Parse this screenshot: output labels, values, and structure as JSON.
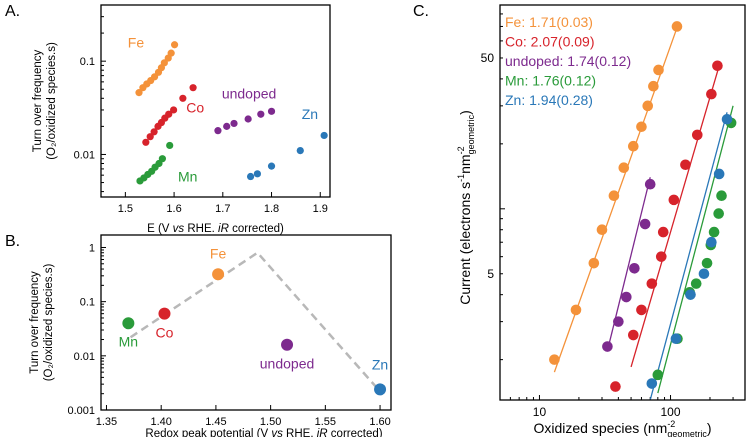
{
  "colors": {
    "Fe": "#f4923a",
    "Co": "#d7232b",
    "undoped": "#7d2a8e",
    "Mn": "#2a9b3a",
    "Zn": "#2a78b8",
    "axis": "#000000",
    "dashed": "#b8b8b8"
  },
  "chart_data": [
    {
      "panel_label": "A.",
      "type": "scatter",
      "xlabel_parts": [
        "E (V ",
        "vs",
        " RHE. ",
        "iR",
        " corrected)"
      ],
      "ylabel_line1": "Turn over frequency",
      "ylabel_line2": "(O₂/oxidized species.s)",
      "xscale": "linear",
      "yscale": "log",
      "xlim": [
        1.45,
        1.92
      ],
      "ylim": [
        0.0035,
        0.4
      ],
      "xticks": [
        1.5,
        1.6,
        1.7,
        1.8,
        1.9
      ],
      "xtick_labels": [
        "1.5",
        "1.6",
        "1.7",
        "1.8",
        "1.9"
      ],
      "yticks": [
        0.01,
        0.1
      ],
      "ytick_labels": [
        "0.01",
        "0.1"
      ],
      "series": [
        {
          "name": "Fe",
          "label": "Fe",
          "label_at": [
            1.505,
            0.14
          ],
          "x": [
            1.528,
            1.536,
            1.544,
            1.552,
            1.56,
            1.568,
            1.574,
            1.58,
            1.588,
            1.594,
            1.601
          ],
          "y": [
            0.046,
            0.052,
            0.057,
            0.062,
            0.068,
            0.076,
            0.085,
            0.096,
            0.108,
            0.122,
            0.15
          ]
        },
        {
          "name": "Co",
          "label": "Co",
          "label_at": [
            1.625,
            0.028
          ],
          "x": [
            1.542,
            1.551,
            1.559,
            1.567,
            1.574,
            1.581,
            1.589,
            1.599,
            1.618,
            1.639
          ],
          "y": [
            0.0135,
            0.0155,
            0.0175,
            0.02,
            0.022,
            0.0245,
            0.027,
            0.03,
            0.04,
            0.052
          ]
        },
        {
          "name": "undoped",
          "label": "undoped",
          "label_at": [
            1.698,
            0.04
          ],
          "x": [
            1.69,
            1.708,
            1.723,
            1.752,
            1.778,
            1.8
          ],
          "y": [
            0.018,
            0.02,
            0.0215,
            0.024,
            0.027,
            0.029
          ]
        },
        {
          "name": "Mn",
          "label": "Mn",
          "label_at": [
            1.608,
            0.0051
          ],
          "x": [
            1.53,
            1.538,
            1.546,
            1.554,
            1.561,
            1.569,
            1.576,
            1.591
          ],
          "y": [
            0.0052,
            0.0056,
            0.0061,
            0.0066,
            0.0073,
            0.008,
            0.009,
            0.0125
          ]
        },
        {
          "name": "Zn",
          "label": "Zn",
          "label_at": [
            1.862,
            0.024
          ],
          "x": [
            1.757,
            1.771,
            1.8,
            1.859,
            1.908
          ],
          "y": [
            0.0058,
            0.0062,
            0.0075,
            0.011,
            0.016
          ]
        }
      ]
    },
    {
      "panel_label": "B.",
      "type": "scatter",
      "xlabel_parts": [
        "Redox peak potential (V ",
        "vs",
        " RHE. ",
        "iR",
        " corrected)"
      ],
      "ylabel_line1": "Turn over frequency",
      "ylabel_line2": "(O₂/oxidized species.s)",
      "xscale": "linear",
      "yscale": "log",
      "xlim": [
        1.345,
        1.61
      ],
      "ylim": [
        0.001,
        1.7
      ],
      "xticks": [
        1.35,
        1.4,
        1.45,
        1.5,
        1.55,
        1.6
      ],
      "xtick_labels": [
        "1.35",
        "1.40",
        "1.45",
        "1.50",
        "1.55",
        "1.60"
      ],
      "yticks": [
        0.001,
        0.01,
        0.1,
        1
      ],
      "ytick_labels": [
        "0.001",
        "0.01",
        "0.1",
        "1"
      ],
      "dashed_line": {
        "x": [
          1.372,
          1.488,
          1.6
        ],
        "y": [
          0.022,
          0.8,
          0.0022
        ]
      },
      "series": [
        {
          "name": "Mn",
          "label": "Mn",
          "x": [
            1.37
          ],
          "y": [
            0.04
          ],
          "label_at": [
            1.37,
            0.015
          ]
        },
        {
          "name": "Co",
          "label": "Co",
          "x": [
            1.403
          ],
          "y": [
            0.06
          ],
          "label_at": [
            1.403,
            0.022
          ]
        },
        {
          "name": "Fe",
          "label": "Fe",
          "x": [
            1.452
          ],
          "y": [
            0.32
          ],
          "label_at": [
            1.452,
            0.62
          ]
        },
        {
          "name": "undoped",
          "label": "undoped",
          "x": [
            1.515
          ],
          "y": [
            0.016
          ],
          "label_at": [
            1.515,
            0.0058
          ]
        },
        {
          "name": "Zn",
          "label": "Zn",
          "x": [
            1.6
          ],
          "y": [
            0.0024
          ],
          "label_at": [
            1.6,
            0.0056
          ]
        }
      ]
    },
    {
      "panel_label": "C.",
      "type": "scatter",
      "xlabel_main": "Oxidized species (nm",
      "xlabel_sup": "-2",
      "xlabel_sub": "geometric",
      "xlabel_end": ")",
      "ylabel_main": "Current (electrons s",
      "ylabel_sup1": "-1",
      "ylabel_mid": "nm",
      "ylabel_sup2": "-2",
      "ylabel_sub": "geometric",
      "ylabel_end": ")",
      "xscale": "log",
      "yscale": "log",
      "xlim": [
        5,
        370
      ],
      "ylim": [
        1.3,
        88
      ],
      "xticks": [
        10,
        100
      ],
      "xtick_labels": [
        "10",
        "100"
      ],
      "yticks": [
        5,
        50
      ],
      "ytick_labels": [
        "5",
        "50"
      ],
      "legend": [
        {
          "name": "Fe",
          "text": "Fe: 1.71(0.03)"
        },
        {
          "name": "Co",
          "text": "Co: 2.07(0.09)"
        },
        {
          "name": "undoped",
          "text": "undoped: 1.74(0.12)"
        },
        {
          "name": "Mn",
          "text": "Mn: 1.76(0.12)"
        },
        {
          "name": "Zn",
          "text": "Zn: 1.94(0.28)"
        }
      ],
      "series": [
        {
          "name": "Fe",
          "fit": [
            [
              13,
              1.75
            ],
            [
              112,
              69
            ]
          ],
          "x": [
            13,
            19,
            26,
            30,
            37,
            44,
            52,
            60,
            67,
            74,
            81,
            112
          ],
          "y": [
            2.0,
            3.4,
            5.6,
            8.0,
            11.5,
            15.5,
            19.5,
            24.0,
            30.0,
            37.0,
            44.0,
            70.0
          ]
        },
        {
          "name": "Co",
          "fit": [
            [
              50,
              1.85
            ],
            [
              235,
              46
            ]
          ],
          "x": [
            38,
            52,
            60,
            72,
            85,
            88,
            106,
            130,
            160,
            205,
            228
          ],
          "y": [
            1.5,
            2.6,
            3.4,
            4.5,
            6.0,
            7.8,
            11.0,
            16.0,
            22.0,
            34.0,
            46.0
          ]
        },
        {
          "name": "undoped",
          "fit": [
            [
              33,
              2.2
            ],
            [
              70,
              14
            ]
          ],
          "x": [
            33,
            40,
            46,
            53,
            64,
            70
          ],
          "y": [
            2.3,
            3.0,
            3.9,
            5.3,
            8.5,
            13.0
          ]
        },
        {
          "name": "Mn",
          "fit": [
            [
              80,
              1.4
            ],
            [
              300,
              30
            ]
          ],
          "x": [
            80,
            113,
            140,
            157,
            190,
            203,
            215,
            233,
            245,
            290
          ],
          "y": [
            1.7,
            2.5,
            4.1,
            4.5,
            5.6,
            6.8,
            7.8,
            9.5,
            11.5,
            25.0
          ]
        },
        {
          "name": "Zn",
          "fit": [
            [
              70,
              1.3
            ],
            [
              270,
              28
            ]
          ],
          "x": [
            72,
            110,
            142,
            180,
            205,
            235,
            270
          ],
          "y": [
            1.55,
            2.5,
            4.0,
            5.0,
            7.0,
            14.5,
            26.0
          ]
        }
      ]
    }
  ]
}
